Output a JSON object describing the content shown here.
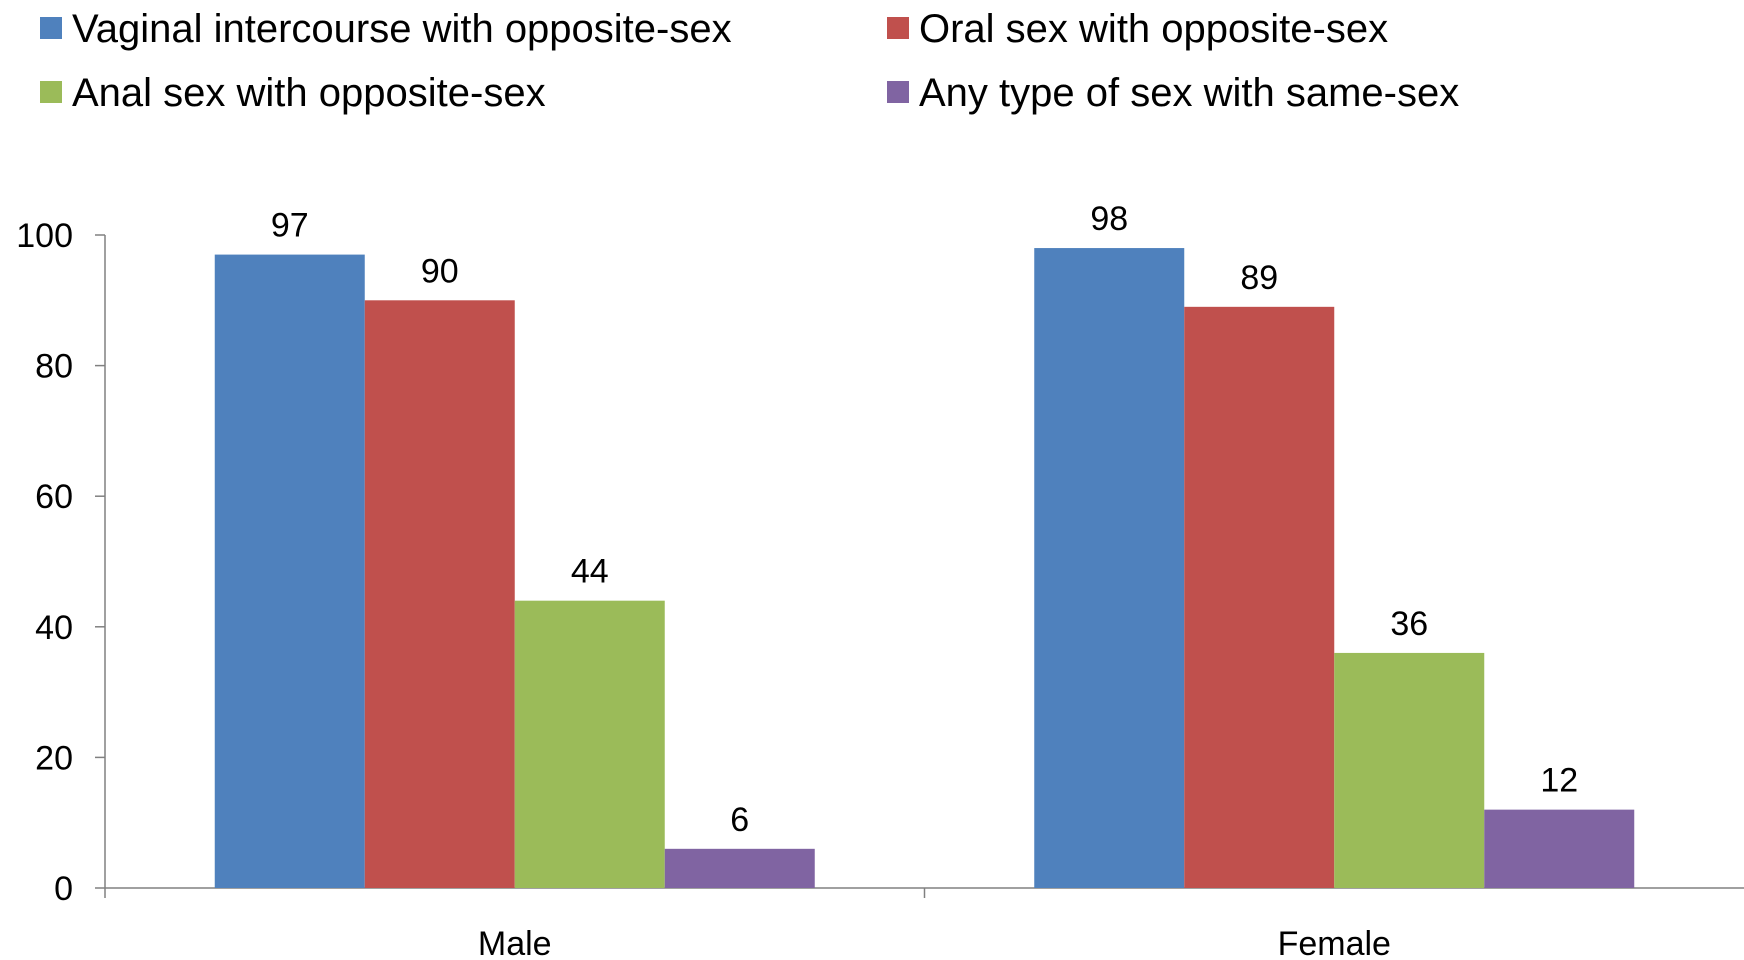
{
  "chart_data": {
    "type": "bar",
    "title": "",
    "xlabel": "",
    "ylabel": "",
    "ylim": [
      0,
      100
    ],
    "yticks": [
      0,
      20,
      40,
      60,
      80,
      100
    ],
    "categories": [
      "Male",
      "Female"
    ],
    "legend_position": "top",
    "grid": false,
    "data_labels": true,
    "series": [
      {
        "name": "Vaginal intercourse with opposite-sex",
        "color": "#4F81BD",
        "values": [
          97,
          98
        ]
      },
      {
        "name": "Oral sex with opposite-sex",
        "color": "#C0504D",
        "values": [
          90,
          89
        ]
      },
      {
        "name": "Anal sex with opposite-sex",
        "color": "#9BBB59",
        "values": [
          44,
          36
        ]
      },
      {
        "name": "Any type of sex with same-sex",
        "color": "#8064A2",
        "values": [
          6,
          12
        ]
      }
    ]
  }
}
